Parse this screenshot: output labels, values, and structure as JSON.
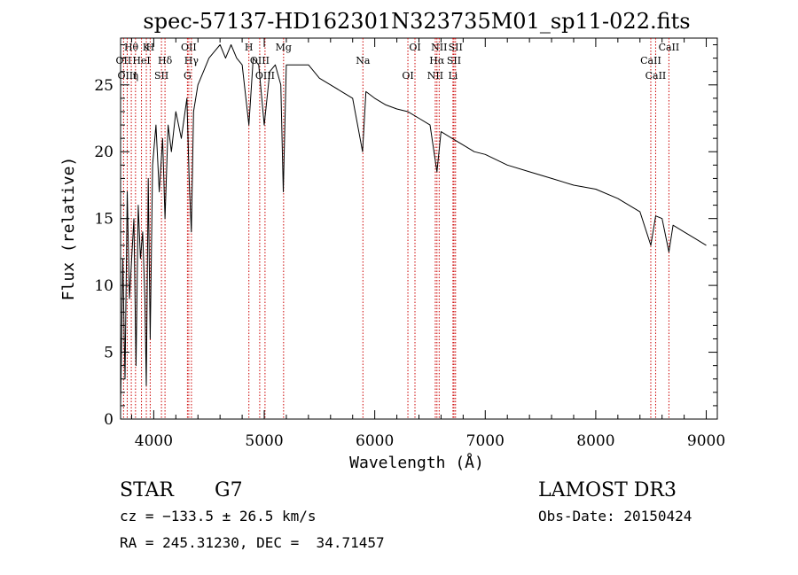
{
  "chart_data": {
    "type": "line",
    "title": "spec-57137-HD162301N323735M01_sp11-022.fits",
    "xlabel": "Wavelength (Å)",
    "ylabel": "Flux (relative)",
    "xlim": [
      3700,
      9100
    ],
    "ylim": [
      0,
      28.5
    ],
    "xticks": [
      4000,
      5000,
      6000,
      7000,
      8000,
      9000
    ],
    "yticks": [
      0,
      5,
      10,
      15,
      20,
      25
    ],
    "grid": false,
    "line_color": "#000000",
    "marker_color": "#cc0000",
    "series": [
      {
        "x": [
          3700,
          3720,
          3740,
          3760,
          3780,
          3800,
          3820,
          3840,
          3860,
          3880,
          3900,
          3920,
          3933,
          3950,
          3968,
          3990,
          4020,
          4050,
          4080,
          4102,
          4130,
          4160,
          4200,
          4250,
          4300,
          4320,
          4340,
          4360,
          4400,
          4450,
          4500,
          4550,
          4600,
          4650,
          4700,
          4750,
          4800,
          4861,
          4900,
          4950,
          5000,
          5050,
          5100,
          5150,
          5172,
          5200,
          5250,
          5300,
          5400,
          5500,
          5600,
          5700,
          5800,
          5890,
          5920,
          6000,
          6100,
          6200,
          6300,
          6400,
          6500,
          6563,
          6600,
          6700,
          6800,
          6900,
          7000,
          7200,
          7400,
          7600,
          7800,
          8000,
          8200,
          8400,
          8498,
          8542,
          8600,
          8662,
          8700,
          8800,
          8900,
          9000
        ],
        "y": [
          1,
          12,
          3,
          17,
          9,
          12,
          15,
          4,
          16,
          12,
          14,
          9,
          2.5,
          18,
          6,
          19,
          22,
          17,
          21,
          15,
          22,
          20,
          23,
          21,
          24,
          18,
          14,
          23,
          25,
          26,
          27,
          27.5,
          28,
          27,
          28,
          27,
          26.5,
          22,
          27,
          26.5,
          22,
          26,
          26.5,
          25,
          17,
          26.5,
          26.5,
          26.5,
          26.5,
          25.5,
          25,
          24.5,
          24,
          20,
          24.5,
          24,
          23.5,
          23.2,
          23,
          22.5,
          22,
          18.5,
          21.5,
          21,
          20.5,
          20,
          19.8,
          19,
          18.5,
          18,
          17.5,
          17.2,
          16.5,
          15.5,
          13,
          15.2,
          15,
          12.5,
          14.5,
          14,
          13.5,
          13
        ]
      }
    ],
    "annotations": [
      {
        "label": "Hθ",
        "x": 3797
      },
      {
        "label": "OII",
        "x": 3727
      },
      {
        "label": "OIII",
        "x": 3760
      },
      {
        "label": "K",
        "x": 3933
      },
      {
        "label": "HeI",
        "x": 3889
      },
      {
        "label": "η",
        "x": 3835
      },
      {
        "label": "H",
        "x": 3968
      },
      {
        "label": "Hδ",
        "x": 4102
      },
      {
        "label": "SII",
        "x": 4070
      },
      {
        "label": "OII",
        "x": 4317
      },
      {
        "label": "Hγ",
        "x": 4341
      },
      {
        "label": "G",
        "x": 4305
      },
      {
        "label": "H",
        "x": 4861
      },
      {
        "label": "OIII",
        "x": 4959
      },
      {
        "label": "OIII",
        "x": 5007
      },
      {
        "label": "Mg",
        "x": 5175
      },
      {
        "label": "Na",
        "x": 5893
      },
      {
        "label": "OI",
        "x": 6300
      },
      {
        "label": "OI",
        "x": 6364
      },
      {
        "label": "Hα",
        "x": 6563
      },
      {
        "label": "NII",
        "x": 6548
      },
      {
        "label": "NII",
        "x": 6583
      },
      {
        "label": "SII",
        "x": 6717
      },
      {
        "label": "Li",
        "x": 6708
      },
      {
        "label": "SII",
        "x": 6731
      },
      {
        "label": "CaII",
        "x": 8498
      },
      {
        "label": "CaII",
        "x": 8542
      },
      {
        "label": "CaII",
        "x": 8662
      }
    ]
  },
  "info": {
    "class_label": "STAR",
    "subclass": "G7",
    "survey": "LAMOST DR3",
    "cz": "cz = −133.5 ± 26.5 km/s",
    "obs_date": "Obs-Date: 20150424",
    "coords": "RA = 245.31230, DEC =  34.71457"
  }
}
